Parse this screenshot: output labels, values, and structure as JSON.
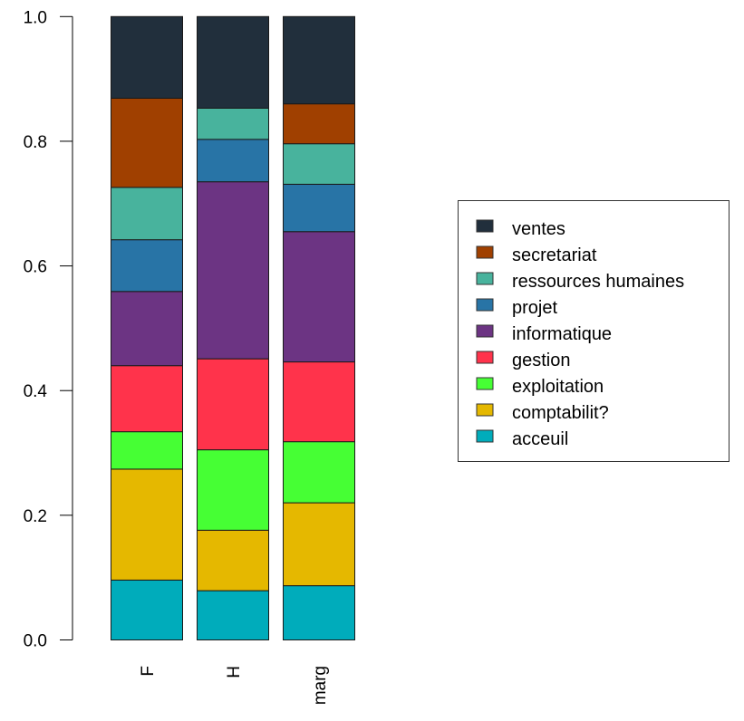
{
  "chart_data": {
    "type": "bar",
    "stacked": true,
    "title": "",
    "xlabel": "",
    "ylabel": "",
    "ylim": [
      0,
      1
    ],
    "yticks": [
      "0.0",
      "0.2",
      "0.4",
      "0.6",
      "0.8",
      "1.0"
    ],
    "ytick_values": [
      0,
      0.2,
      0.4,
      0.6,
      0.8,
      1.0
    ],
    "grid": false,
    "categories": [
      "F",
      "H",
      "marg"
    ],
    "legend_position": "right",
    "series": [
      {
        "name": "acceuil",
        "color": "#00ACBB",
        "values": [
          0.096,
          0.079,
          0.087
        ]
      },
      {
        "name": "comptabilit?",
        "color": "#E5B800",
        "values": [
          0.178,
          0.097,
          0.133
        ]
      },
      {
        "name": "exploitation",
        "color": "#46FF34",
        "values": [
          0.06,
          0.129,
          0.098
        ]
      },
      {
        "name": "gestion",
        "color": "#FF334B",
        "values": [
          0.106,
          0.146,
          0.128
        ]
      },
      {
        "name": "informatique",
        "color": "#6C3483",
        "values": [
          0.119,
          0.284,
          0.209
        ]
      },
      {
        "name": "projet",
        "color": "#2874A6",
        "values": [
          0.083,
          0.068,
          0.076
        ]
      },
      {
        "name": "ressources humaines",
        "color": "#48B39D",
        "values": [
          0.084,
          0.05,
          0.065
        ]
      },
      {
        "name": "secretariat",
        "color": "#A04000",
        "values": [
          0.143,
          0.0,
          0.064
        ]
      },
      {
        "name": "ventes",
        "color": "#212F3C",
        "values": [
          0.131,
          0.147,
          0.14
        ]
      }
    ]
  }
}
